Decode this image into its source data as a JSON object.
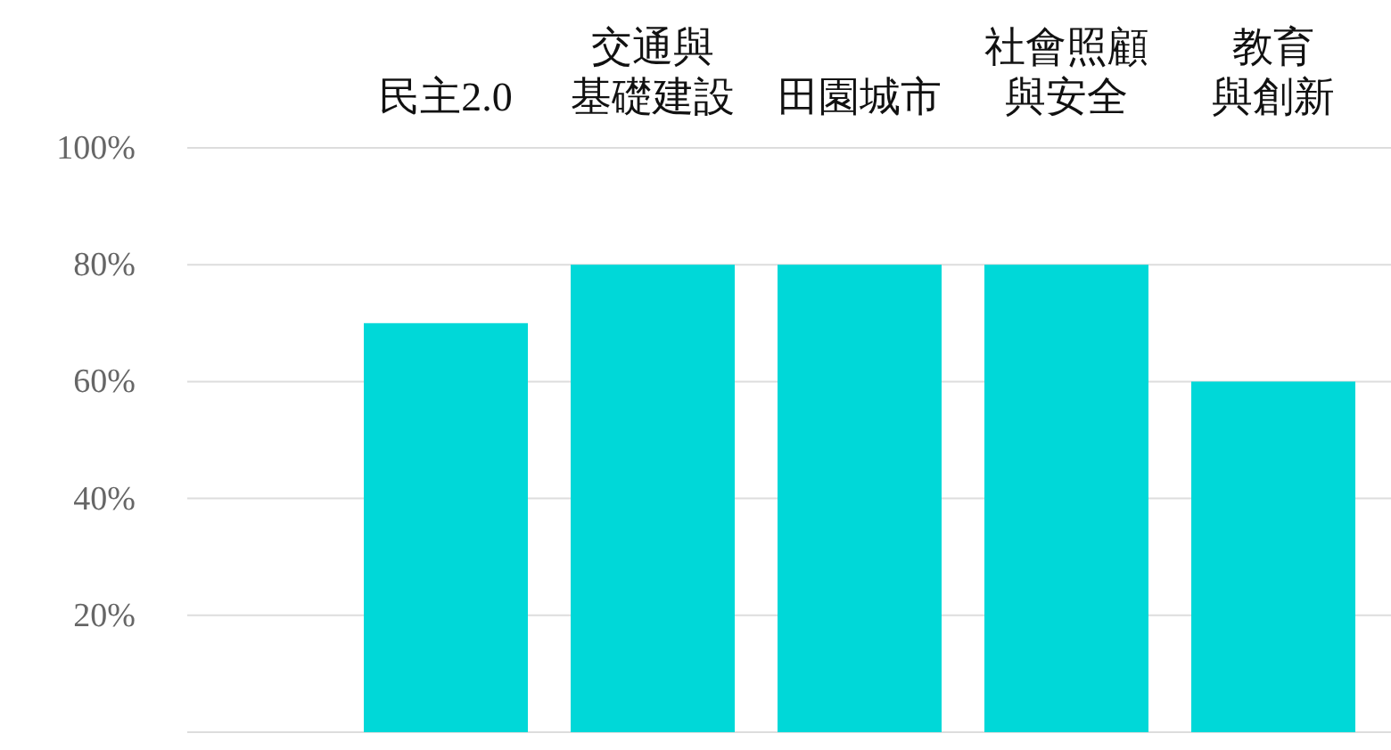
{
  "chart_data": {
    "type": "bar",
    "categories": [
      "民主2.0",
      "交通與基礎建設",
      "田園城市",
      "社會照顧與安全",
      "教育與創新"
    ],
    "values": [
      70,
      80,
      80,
      80,
      60
    ],
    "color": "#00d8d8",
    "ylim": [
      0,
      100
    ],
    "yticks": [
      {
        "value": 20,
        "label": "20%"
      },
      {
        "value": 40,
        "label": "40%"
      },
      {
        "value": 60,
        "label": "60%"
      },
      {
        "value": 80,
        "label": "80%"
      },
      {
        "value": 100,
        "label": "100%"
      }
    ],
    "grid": "y"
  }
}
